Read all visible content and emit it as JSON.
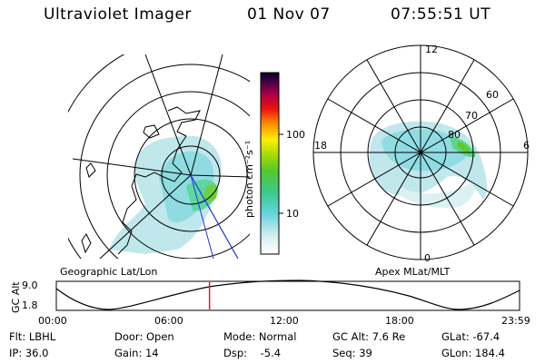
{
  "header": {
    "instrument": "Ultraviolet Imager",
    "date": "01 Nov 07",
    "time": "07:55:51 UT"
  },
  "colorbar": {
    "unit": "photon cm⁻²s⁻¹",
    "ticks": [
      "100",
      "10"
    ]
  },
  "left_panel": {
    "caption": "Geographic Lat/Lon"
  },
  "right_panel": {
    "caption": "Apex MLat/MLT",
    "mlt_labels": {
      "top": "12",
      "left": "18",
      "right": "6",
      "bottom": "0"
    },
    "lat_labels": [
      "60",
      "70",
      "80"
    ]
  },
  "altitude_strip": {
    "ylabel": "GC Alt",
    "yticks": [
      "9.0",
      "1.8"
    ],
    "xticks": [
      "00:00",
      "06:00",
      "12:00",
      "18:00",
      "23:59"
    ],
    "marker_time": "07:55:51"
  },
  "info": {
    "flt": "Flt: LBHL",
    "door": "Door: Open",
    "mode": "Mode: Normal",
    "gc_alt": "GC Alt: 7.6 Re",
    "glat": "GLat: -67.4",
    "ip": "IP: 36.0",
    "gain": "Gain: 14",
    "dsp": "Dsp:    -5.4",
    "seq": "Seq: 39",
    "glon": "GLon: 184.4"
  }
}
